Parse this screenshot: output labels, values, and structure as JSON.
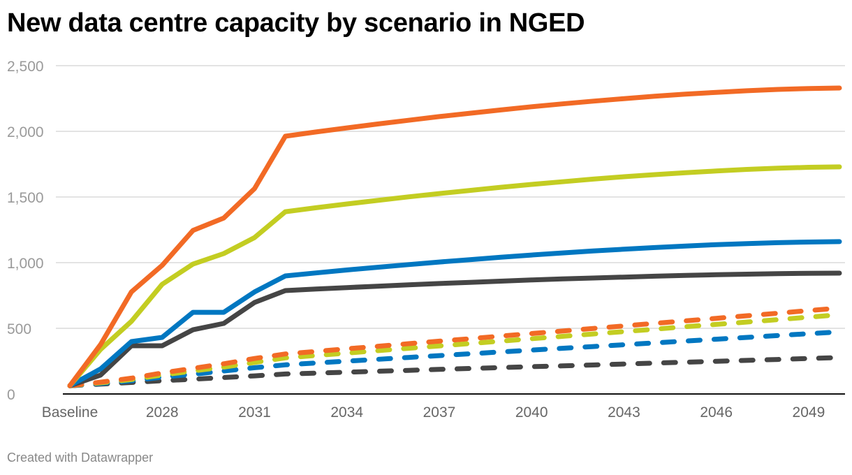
{
  "title": "New data centre capacity by scenario in NGED",
  "footer": "Created with Datawrapper",
  "chart_data": {
    "type": "line",
    "title": "New data centre capacity by scenario in NGED",
    "xlabel": "",
    "ylabel": "",
    "ylim": [
      0,
      2500
    ],
    "grid": true,
    "legend": "none",
    "y_ticks": [
      "0",
      "500",
      "1,000",
      "1,500",
      "2,000",
      "2,500"
    ],
    "y_tick_values": [
      0,
      500,
      1000,
      1500,
      2000,
      2500
    ],
    "x_ticks": [
      "Baseline",
      "2028",
      "2031",
      "2034",
      "2037",
      "2040",
      "2043",
      "2046",
      "2049"
    ],
    "categories": [
      "Baseline",
      "2026",
      "2027",
      "2028",
      "2029",
      "2030",
      "2031",
      "2032",
      "2033",
      "2034",
      "2035",
      "2036",
      "2037",
      "2038",
      "2039",
      "2040",
      "2041",
      "2042",
      "2043",
      "2044",
      "2045",
      "2046",
      "2047",
      "2048",
      "2049",
      "2050"
    ],
    "series": [
      {
        "color": "#f26a25",
        "style": "solid",
        "values": [
          63,
          377,
          777,
          979,
          1245,
          1340,
          1564,
          1963,
          1995,
          2026,
          2056,
          2084,
          2112,
          2138,
          2163,
          2187,
          2209,
          2230,
          2249,
          2267,
          2283,
          2297,
          2309,
          2319,
          2326,
          2330
        ]
      },
      {
        "color": "#c3cd22",
        "style": "solid",
        "values": [
          63,
          340,
          553,
          835,
          989,
          1069,
          1191,
          1388,
          1418,
          1447,
          1474,
          1501,
          1526,
          1550,
          1574,
          1596,
          1616,
          1636,
          1654,
          1670,
          1685,
          1698,
          1710,
          1719,
          1726,
          1729
        ]
      },
      {
        "color": "#0077c1",
        "style": "solid",
        "values": [
          63,
          191,
          399,
          431,
          622,
          622,
          777,
          899,
          922,
          944,
          965,
          985,
          1005,
          1023,
          1041,
          1058,
          1074,
          1089,
          1102,
          1115,
          1126,
          1137,
          1145,
          1152,
          1157,
          1160
        ]
      },
      {
        "color": "#454545",
        "style": "solid",
        "values": [
          63,
          144,
          367,
          367,
          489,
          537,
          697,
          787,
          799,
          810,
          821,
          831,
          841,
          850,
          859,
          868,
          876,
          883,
          890,
          897,
          903,
          908,
          912,
          916,
          919,
          920
        ]
      },
      {
        "color": "#f26a25",
        "style": "dashed",
        "values": [
          63,
          90,
          120,
          160,
          195,
          230,
          270,
          305,
          324,
          344,
          363,
          383,
          402,
          421,
          441,
          460,
          479,
          499,
          518,
          538,
          557,
          576,
          596,
          615,
          635,
          654
        ]
      },
      {
        "color": "#c3cd22",
        "style": "dashed",
        "values": [
          63,
          85,
          110,
          144,
          175,
          205,
          240,
          275,
          293,
          311,
          330,
          348,
          366,
          384,
          402,
          421,
          439,
          457,
          475,
          493,
          512,
          530,
          548,
          566,
          585,
          603
        ]
      },
      {
        "color": "#0077c1",
        "style": "dashed",
        "values": [
          63,
          80,
          100,
          128,
          150,
          175,
          200,
          222,
          236,
          250,
          264,
          278,
          292,
          306,
          320,
          334,
          348,
          361,
          375,
          389,
          403,
          417,
          431,
          445,
          459,
          473
        ]
      },
      {
        "color": "#454545",
        "style": "dashed",
        "values": [
          63,
          75,
          88,
          101,
          112,
          125,
          138,
          152,
          159,
          166,
          173,
          180,
          187,
          194,
          201,
          208,
          214,
          221,
          228,
          235,
          242,
          249,
          256,
          263,
          270,
          277
        ]
      }
    ]
  }
}
